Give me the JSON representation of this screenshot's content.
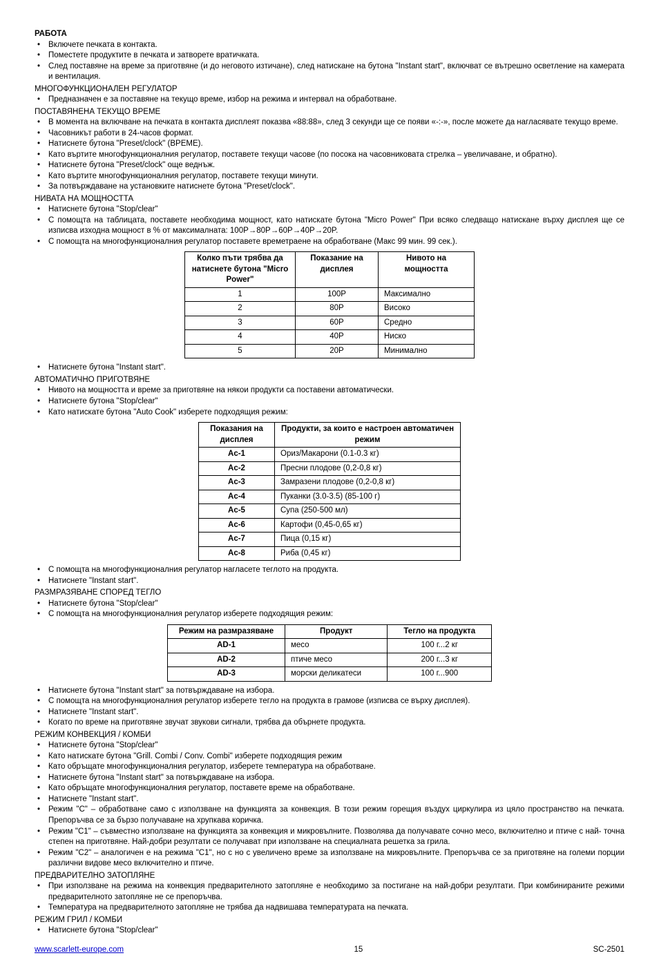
{
  "h_work": "РАБОТА",
  "work_items": [
    "Включете печката в контакта.",
    "Поместете продуктите в печката и затворете вратичката.",
    "След поставяне на време за приготвяне (и до неговото изтичане), след натискане на бутона \"Instant start\", включват се вътрешно осветление на камерата и вентилация."
  ],
  "h_multifunc": "МНОГОФУНКЦИОНАЛЕН РЕГУЛАТОР",
  "multifunc_items": [
    "Предназначен е за поставяне на текущо време, избор на режима и интервал на обработване."
  ],
  "h_settime": "ПОСТАВЯНЕНА ТЕКУЩО ВРЕМЕ",
  "settime_items": [
    "В момента на включване на печката в контакта дисплеят показва «88:88», след 3 секунди ще се появи «-:-», после можете да нагласявате текущо време.",
    "Часовникът работи в 24-часов формат.",
    "Натиснете бутона \"Preset/clock\" (ВРЕМЕ).",
    "Като въртите многофункционалния регулатор, поставете текущи часове (по посока на часовниковата стрелка – увеличаване, и обратно).",
    "Натиснете бутона \"Preset/clock\" още веднъж.",
    "Като въртите многофункционалния регулатор, поставете текущи минути.",
    "За потвърждаване на установките натиснете бутона \"Preset/clock\"."
  ],
  "h_power": "НИВАТА НА МОЩНОСТТА",
  "power_items": [
    "Натиснете бутона \"Stop/clear\"",
    "С помощта на таблицата, поставете необходима мощност, като натискате бутона \"Micro Power\" При всяко следващо натискане върху дисплея ще се изписва изходна мощност в % от максималната: 100P→80P→60P→40P→20P.",
    "С помощта на многофункционалния регулатор поставете времетраене на обработване (Макс 99 мин. 99 сек.)."
  ],
  "tbl_power_hdr": [
    "Колко пъти трябва да натиснете бутона \"Micro Power\"",
    "Показание на дисплея",
    "Нивото на мощността"
  ],
  "tbl_power_rows": [
    [
      "1",
      "100P",
      "Максимално"
    ],
    [
      "2",
      "80P",
      "Високо"
    ],
    [
      "3",
      "60P",
      "Средно"
    ],
    [
      "4",
      "40P",
      "Ниско"
    ],
    [
      "5",
      "20P",
      "Минимално"
    ]
  ],
  "post_power_items": [
    "Натиснете бутона \"Instant start\"."
  ],
  "h_autocook": "АВТОМАТИЧНО ПРИГОТВЯНЕ",
  "autocook_items": [
    "Нивото на мощността и време за приготвяне на някои продукти са поставени автоматически.",
    "Натиснете бутона \"Stop/clear\"",
    "Като натискате бутона \"Auto Cook\" изберете подходящия режим:"
  ],
  "tbl_auto_hdr": [
    "Показания на дисплея",
    "Продукти, за които е настроен автоматичен режим"
  ],
  "tbl_auto_rows": [
    [
      "Ac-1",
      "Ориз/Макарони (0.1-0.3 кг)"
    ],
    [
      "Ac-2",
      "Пресни плодове (0,2-0,8 кг)"
    ],
    [
      "Ac-3",
      "Замразени плодове (0,2-0,8 кг)"
    ],
    [
      "Ac-4",
      "Пуканки (3.0-3.5) (85-100 г)"
    ],
    [
      "Ac-5",
      "Супа (250-500 мл)"
    ],
    [
      "Ac-6",
      "Картофи (0,45-0,65 кг)"
    ],
    [
      "Ac-7",
      "Пица (0,15 кг)"
    ],
    [
      "Ac-8",
      "Риба (0,45 кг)"
    ]
  ],
  "post_auto_items": [
    "С помощта на многофункционалния регулатор нагласете теглото на продукта.",
    "Натиснете \"Instant start\"."
  ],
  "h_defrost": "РАЗМРАЗЯВАНЕ СПОРЕД ТЕГЛО",
  "defrost_items": [
    "Натиснете бутона \"Stop/clear\"",
    "С помощта на многофункционалния регулатор изберете подходящия режим:"
  ],
  "tbl_defrost_hdr": [
    "Режим на размразяване",
    "Продукт",
    "Тегло на продукта"
  ],
  "tbl_defrost_rows": [
    [
      "AD-1",
      "месо",
      "100 г...2 кг"
    ],
    [
      "AD-2",
      "птиче месо",
      "200 г...3 кг"
    ],
    [
      "AD-3",
      "морски деликатеси",
      "100 г...900"
    ]
  ],
  "post_defrost_items": [
    "Натиснете бутона \"Instant start\" за потвърждаване на избора.",
    "С помощта на многофункционалния регулатор изберете тегло на продукта в грамове (изписва се върху дисплея).",
    "Натиснете \"Instant start\".",
    "Когато по време на приготвяне звучат звукови сигнали, трябва да обърнете продукта."
  ],
  "h_convcombi": "РЕЖИМ КОНВЕКЦИЯ / КОМБИ",
  "convcombi_items": [
    "Натиснете бутона \"Stop/clear\"",
    "Като натискате бутона \"Grill. Combi / Conv. Combi\" изберете подходящия режим",
    "Като обръщате многофункционалния регулатор, изберете температура на обработване.",
    "Натиснете бутона \"Instant start\" за потвърждаване на избора.",
    "Като обръщате многофункционалния регулатор, поставете време на обработване.",
    "Натиснете \"Instant start\".",
    "Режим \"C\" – обработване само с използване на функцията за конвекция. В този режим горещия въздух циркулира из цяло пространство на печката. Препоръчва се за бързо получаване на хрупкава коричка.",
    "Режим \"C1\" – съвместно използване на функцията за конвекция и микровълните. Позволява да получавате сочно месо, включително и птиче с най- точна степен на приготвяне. Най-добри резултати се получават при използване на специалната решетка за грила.",
    "Режим \"C2\" – аналогичен е на режима \"C1\", но с но с увеличено време за използване на микровълните. Препоръчва се за приготвяне на големи порции различни видове месо включително и птиче."
  ],
  "h_preheat": "ПРЕДВАРИТЕЛНО ЗАТОПЛЯНЕ",
  "preheat_items": [
    "При използване на режима на конвекция предварителното затопляне е необходимо за постигане на най-добри резултати. При комбинираните режими предварителното затопляне не се препоръчва.",
    "Температура на предварителното затопляне не трябва да надвишава температурата на печката."
  ],
  "h_grill": "РЕЖИМ ГРИЛ / КОМБИ",
  "grill_items": [
    "Натиснете бутона \"Stop/clear\""
  ],
  "footer_link": "www.scarlett-europe.com",
  "footer_page": "15",
  "footer_model": "SC-2501"
}
